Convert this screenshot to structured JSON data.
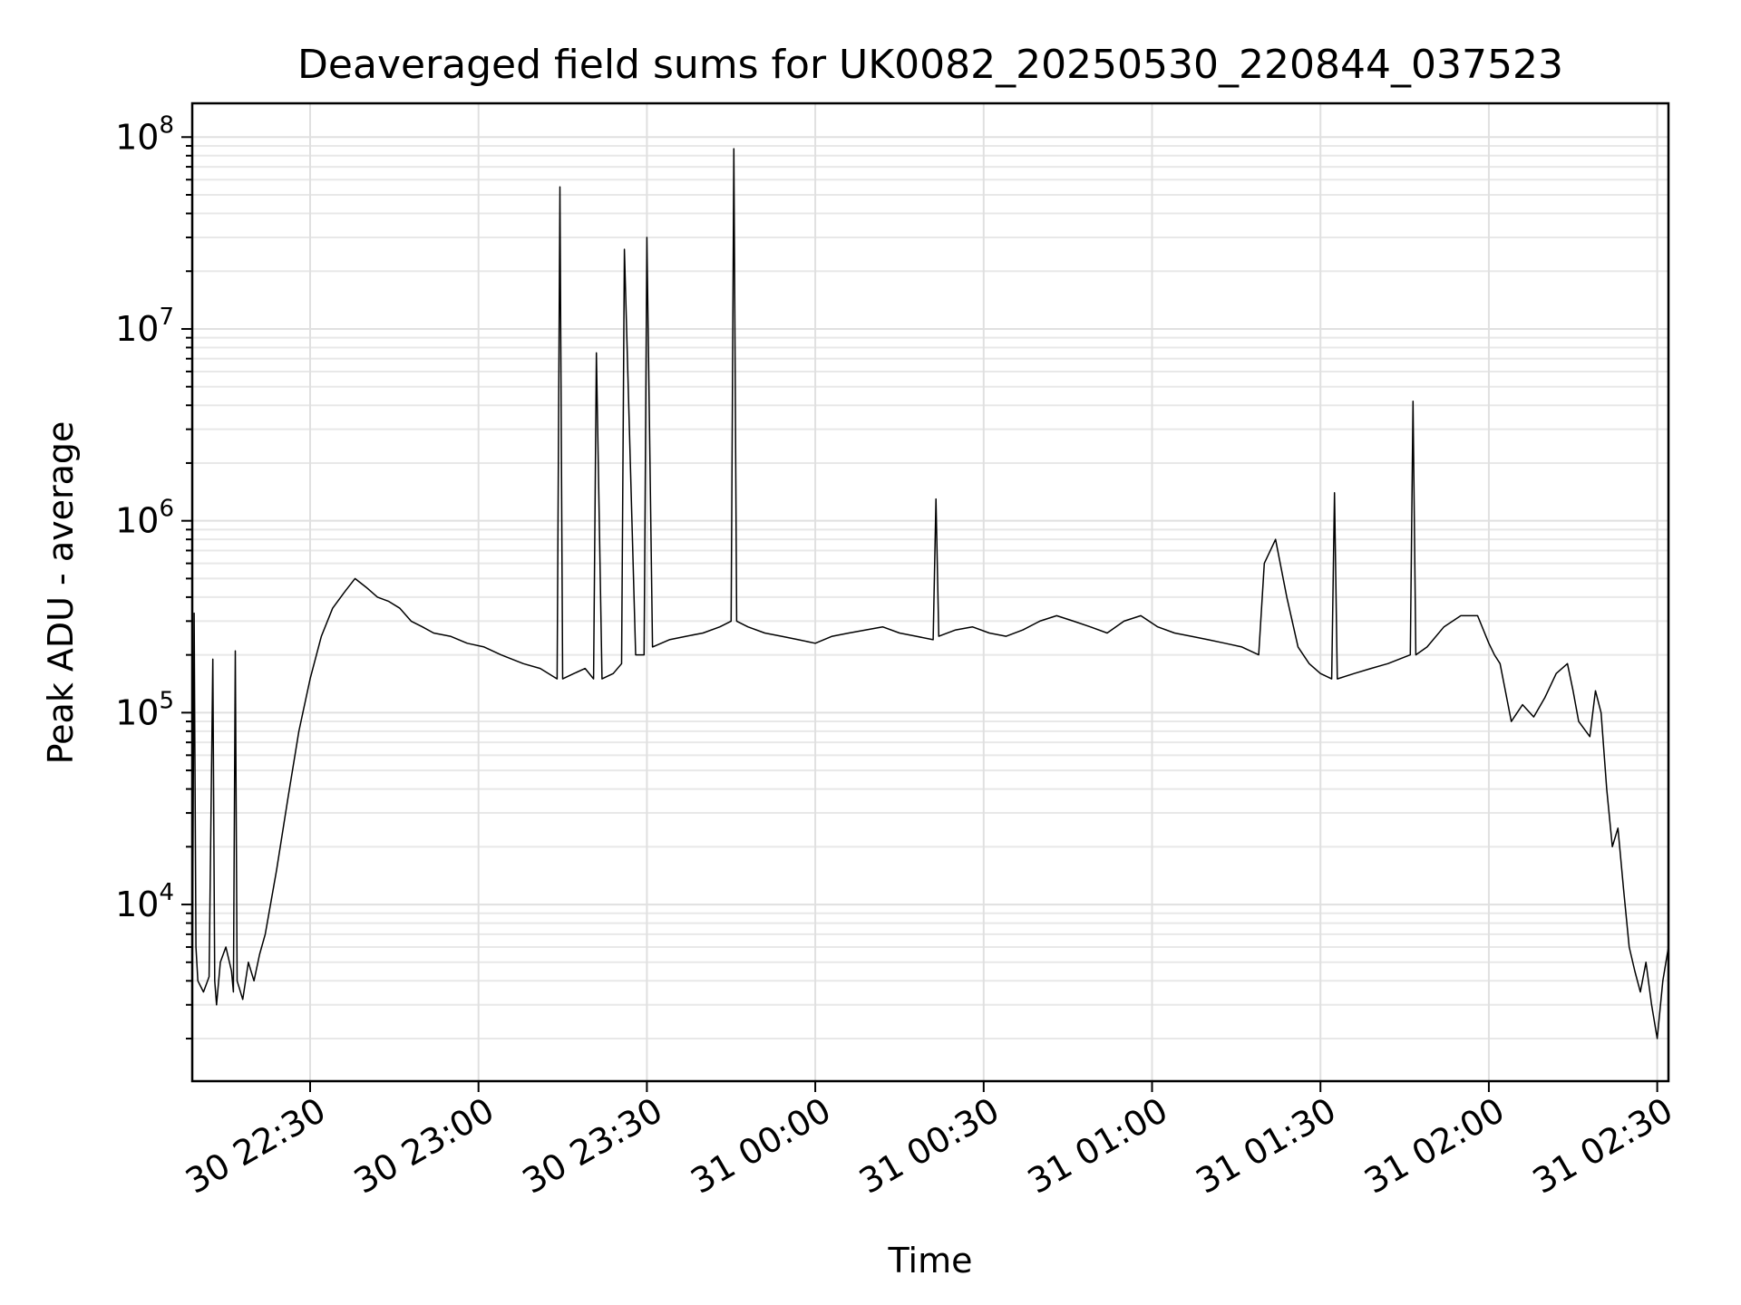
{
  "chart_data": {
    "type": "line",
    "title": "Deaveraged field sums for UK0082_20250530_220844_037523",
    "xlabel": "Time",
    "ylabel": "Peak ADU - average",
    "yscale": "log",
    "xlim": [
      "2025-05-30 22:09:00",
      "2025-05-31 02:32:00"
    ],
    "ylim": [
      1200,
      150000000
    ],
    "grid": "major and minor, light gray",
    "legend": "none",
    "line_color": "#000000",
    "x_ticks": [
      {
        "value": "2025-05-30 22:30:00",
        "label": "30 22:30"
      },
      {
        "value": "2025-05-30 23:00:00",
        "label": "30 23:00"
      },
      {
        "value": "2025-05-30 23:30:00",
        "label": "30 23:30"
      },
      {
        "value": "2025-05-31 00:00:00",
        "label": "31 00:00"
      },
      {
        "value": "2025-05-31 00:30:00",
        "label": "31 00:30"
      },
      {
        "value": "2025-05-31 01:00:00",
        "label": "31 01:00"
      },
      {
        "value": "2025-05-31 01:30:00",
        "label": "31 01:30"
      },
      {
        "value": "2025-05-31 02:00:00",
        "label": "31 02:00"
      },
      {
        "value": "2025-05-31 02:30:00",
        "label": "31 02:30"
      }
    ],
    "y_ticks": [
      {
        "value": 10000,
        "base": "10",
        "exp": "4"
      },
      {
        "value": 100000,
        "base": "10",
        "exp": "5"
      },
      {
        "value": 1000000,
        "base": "10",
        "exp": "6"
      },
      {
        "value": 10000000,
        "base": "10",
        "exp": "7"
      },
      {
        "value": 100000000,
        "base": "10",
        "exp": "8"
      }
    ],
    "series": [
      {
        "x": [
          "2025-05-30 22:09:00",
          "2025-05-30 22:09:20",
          "2025-05-30 22:09:40",
          "2025-05-30 22:10:00",
          "2025-05-30 22:11:00",
          "2025-05-30 22:12:00",
          "2025-05-30 22:12:40",
          "2025-05-30 22:13:00",
          "2025-05-30 22:13:20",
          "2025-05-30 22:14:00",
          "2025-05-30 22:15:00",
          "2025-05-30 22:16:00",
          "2025-05-30 22:16:20",
          "2025-05-30 22:16:40",
          "2025-05-30 22:17:00",
          "2025-05-30 22:18:00",
          "2025-05-30 22:19:00",
          "2025-05-30 22:20:00",
          "2025-05-30 22:21:00",
          "2025-05-30 22:22:00",
          "2025-05-30 22:24:00",
          "2025-05-30 22:26:00",
          "2025-05-30 22:28:00",
          "2025-05-30 22:30:00",
          "2025-05-30 22:32:00",
          "2025-05-30 22:34:00",
          "2025-05-30 22:36:00",
          "2025-05-30 22:38:00",
          "2025-05-30 22:40:00",
          "2025-05-30 22:42:00",
          "2025-05-30 22:44:00",
          "2025-05-30 22:46:00",
          "2025-05-30 22:48:00",
          "2025-05-30 22:50:00",
          "2025-05-30 22:52:00",
          "2025-05-30 22:55:00",
          "2025-05-30 22:58:00",
          "2025-05-30 23:01:00",
          "2025-05-30 23:04:00",
          "2025-05-30 23:06:00",
          "2025-05-30 23:08:00",
          "2025-05-30 23:11:00",
          "2025-05-30 23:14:00",
          "2025-05-30 23:14:30",
          "2025-05-30 23:15:00",
          "2025-05-30 23:17:00",
          "2025-05-30 23:19:00",
          "2025-05-30 23:20:30",
          "2025-05-30 23:21:00",
          "2025-05-30 23:22:00",
          "2025-05-30 23:24:00",
          "2025-05-30 23:25:30",
          "2025-05-30 23:26:00",
          "2025-05-30 23:28:00",
          "2025-05-30 23:29:30",
          "2025-05-30 23:30:00",
          "2025-05-30 23:31:00",
          "2025-05-30 23:34:00",
          "2025-05-30 23:37:00",
          "2025-05-30 23:40:00",
          "2025-05-30 23:43:00",
          "2025-05-30 23:45:00",
          "2025-05-30 23:45:30",
          "2025-05-30 23:46:00",
          "2025-05-30 23:48:00",
          "2025-05-30 23:51:00",
          "2025-05-30 23:54:00",
          "2025-05-30 23:57:00",
          "2025-05-31 00:00:00",
          "2025-05-31 00:03:00",
          "2025-05-31 00:06:00",
          "2025-05-31 00:09:00",
          "2025-05-31 00:12:00",
          "2025-05-31 00:15:00",
          "2025-05-31 00:18:00",
          "2025-05-31 00:21:00",
          "2025-05-31 00:21:30",
          "2025-05-31 00:22:00",
          "2025-05-31 00:25:00",
          "2025-05-31 00:28:00",
          "2025-05-31 00:31:00",
          "2025-05-31 00:34:00",
          "2025-05-31 00:37:00",
          "2025-05-31 00:40:00",
          "2025-05-31 00:43:00",
          "2025-05-31 00:46:00",
          "2025-05-31 00:49:00",
          "2025-05-31 00:52:00",
          "2025-05-31 00:55:00",
          "2025-05-31 00:58:00",
          "2025-05-31 01:01:00",
          "2025-05-31 01:04:00",
          "2025-05-31 01:07:00",
          "2025-05-31 01:10:00",
          "2025-05-31 01:13:00",
          "2025-05-31 01:16:00",
          "2025-05-31 01:19:00",
          "2025-05-31 01:20:00",
          "2025-05-31 01:22:00",
          "2025-05-31 01:24:00",
          "2025-05-31 01:26:00",
          "2025-05-31 01:28:00",
          "2025-05-31 01:30:00",
          "2025-05-31 01:32:00",
          "2025-05-31 01:32:30",
          "2025-05-31 01:33:00",
          "2025-05-31 01:36:00",
          "2025-05-31 01:39:00",
          "2025-05-31 01:42:00",
          "2025-05-31 01:44:00",
          "2025-05-31 01:46:00",
          "2025-05-31 01:46:30",
          "2025-05-31 01:47:00",
          "2025-05-31 01:49:00",
          "2025-05-31 01:52:00",
          "2025-05-31 01:55:00",
          "2025-05-31 01:58:00",
          "2025-05-31 02:00:00",
          "2025-05-31 02:01:00",
          "2025-05-31 02:02:00",
          "2025-05-31 02:04:00",
          "2025-05-31 02:06:00",
          "2025-05-31 02:08:00",
          "2025-05-31 02:10:00",
          "2025-05-31 02:12:00",
          "2025-05-31 02:14:00",
          "2025-05-31 02:15:00",
          "2025-05-31 02:16:00",
          "2025-05-31 02:18:00",
          "2025-05-31 02:19:00",
          "2025-05-31 02:20:00",
          "2025-05-31 02:21:00",
          "2025-05-31 02:22:00",
          "2025-05-31 02:23:00",
          "2025-05-31 02:24:00",
          "2025-05-31 02:25:00",
          "2025-05-31 02:26:00",
          "2025-05-31 02:27:00",
          "2025-05-31 02:28:00",
          "2025-05-31 02:29:00",
          "2025-05-31 02:30:00",
          "2025-05-31 02:31:00",
          "2025-05-31 02:32:00"
        ],
        "y": [
          3000,
          330000,
          6000,
          4000,
          3500,
          4200,
          190000,
          4000,
          3000,
          5000,
          6000,
          4500,
          3500,
          210000,
          4000,
          3200,
          5000,
          4000,
          5500,
          7000,
          15000,
          35000,
          80000,
          150000,
          250000,
          350000,
          420000,
          500000,
          450000,
          400000,
          380000,
          350000,
          300000,
          280000,
          260000,
          250000,
          230000,
          220000,
          200000,
          190000,
          180000,
          170000,
          150000,
          55000000,
          150000,
          160000,
          170000,
          150000,
          7500000,
          150000,
          160000,
          180000,
          26000000,
          200000,
          200000,
          30000000,
          220000,
          240000,
          250000,
          260000,
          280000,
          300000,
          87000000,
          300000,
          280000,
          260000,
          250000,
          240000,
          230000,
          250000,
          260000,
          270000,
          280000,
          260000,
          250000,
          240000,
          1300000,
          250000,
          270000,
          280000,
          260000,
          250000,
          270000,
          300000,
          320000,
          300000,
          280000,
          260000,
          300000,
          320000,
          280000,
          260000,
          250000,
          240000,
          230000,
          220000,
          200000,
          600000,
          800000,
          400000,
          220000,
          180000,
          160000,
          150000,
          1400000,
          150000,
          160000,
          170000,
          180000,
          190000,
          200000,
          4200000,
          200000,
          220000,
          280000,
          320000,
          320000,
          230000,
          200000,
          180000,
          90000,
          110000,
          95000,
          120000,
          160000,
          180000,
          130000,
          90000,
          75000,
          130000,
          100000,
          40000,
          20000,
          25000,
          12000,
          6000,
          4500,
          3500,
          5000,
          3000,
          2000,
          4000,
          6000
        ]
      }
    ]
  }
}
